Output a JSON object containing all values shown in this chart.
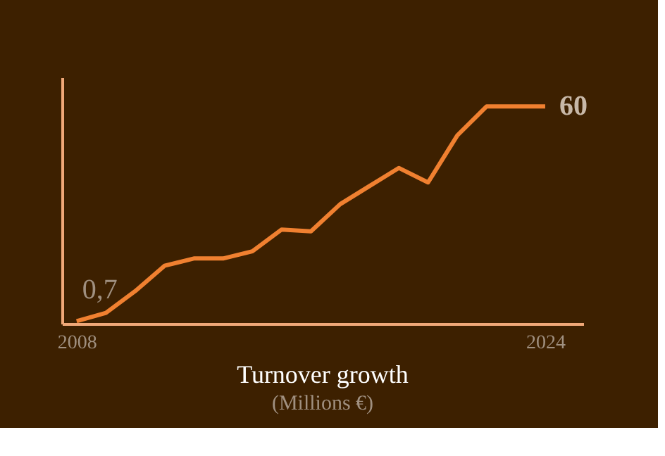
{
  "chart_data": {
    "type": "line",
    "title": "Turnover growth",
    "subtitle": "(Millions €)",
    "x": [
      2008,
      2009,
      2010,
      2011,
      2012,
      2013,
      2014,
      2015,
      2016,
      2017,
      2018,
      2019,
      2020,
      2021,
      2022,
      2023,
      2024
    ],
    "series": [
      {
        "color": "#f08030",
        "values": [
          0.7,
          3,
          9,
          16,
          18,
          18,
          20,
          26,
          25.5,
          33,
          38,
          43,
          39,
          52,
          60,
          60,
          60
        ],
        "value_labels": [
          "0,7",
          null,
          null,
          null,
          null,
          null,
          null,
          null,
          null,
          null,
          null,
          null,
          null,
          null,
          null,
          null,
          "60"
        ]
      }
    ],
    "xlim": [
      2007.5,
      2025.3
    ],
    "xticks": [
      2008,
      2024
    ],
    "ylim": [
      0,
      68
    ],
    "tick_labels": "x",
    "grid": false,
    "marker": "none",
    "line_style": "solid"
  }
}
